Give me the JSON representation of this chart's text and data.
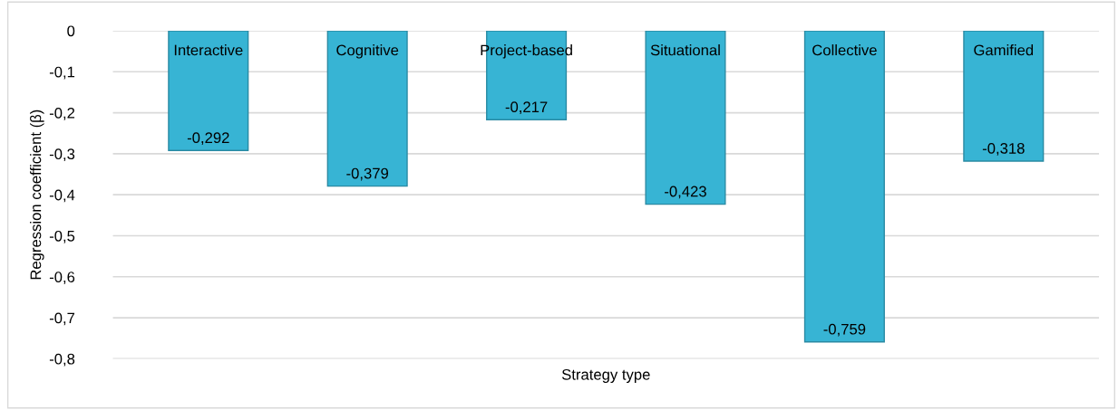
{
  "chart_data": {
    "type": "bar",
    "categories": [
      "Interactive",
      "Cognitive",
      "Project-based",
      "Situational",
      "Collective",
      "Gamified"
    ],
    "values": [
      -0.292,
      -0.379,
      -0.217,
      -0.423,
      -0.759,
      -0.318
    ],
    "value_labels": [
      "-0,292",
      "-0,379",
      "-0,217",
      "-0,423",
      "-0,759",
      "-0,318"
    ],
    "color": "#37b4d4",
    "xlabel": "Strategy type",
    "ylabel": "Regression coefficient (β)",
    "ylim": [
      -0.8,
      0
    ],
    "yticks": [
      {
        "value": 0,
        "label": "0"
      },
      {
        "value": -0.1,
        "label": "-0,1"
      },
      {
        "value": -0.2,
        "label": "-0,2"
      },
      {
        "value": -0.3,
        "label": "-0,3"
      },
      {
        "value": -0.4,
        "label": "-0,4"
      },
      {
        "value": -0.5,
        "label": "-0,5"
      },
      {
        "value": -0.6,
        "label": "-0,6"
      },
      {
        "value": -0.7,
        "label": "-0,7"
      },
      {
        "value": -0.8,
        "label": "-0,8"
      }
    ],
    "grid": "y"
  }
}
